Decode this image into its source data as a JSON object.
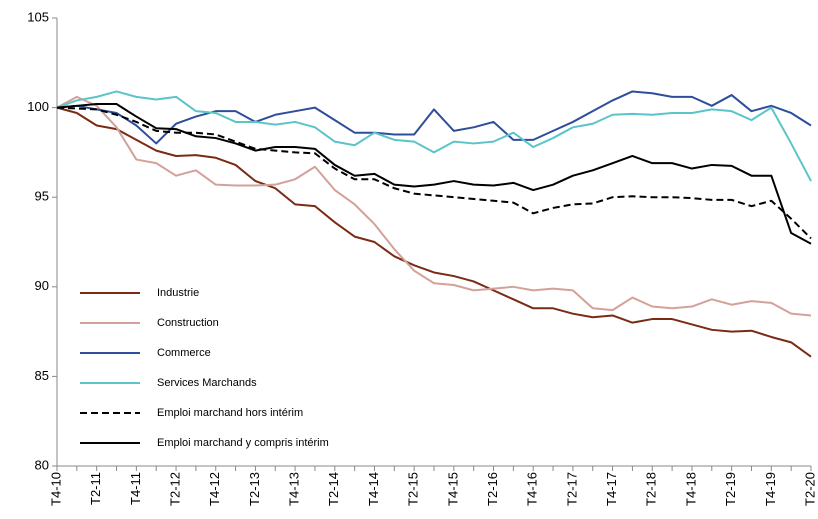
{
  "chart_data": {
    "type": "line",
    "categories": [
      "T4-10",
      null,
      "T2-11",
      null,
      "T4-11",
      null,
      "T2-12",
      null,
      "T4-12",
      null,
      "T2-13",
      null,
      "T4-13",
      null,
      "T2-14",
      null,
      "T4-14",
      null,
      "T2-15",
      null,
      "T4-15",
      null,
      "T2-16",
      null,
      "T4-16",
      null,
      "T2-17",
      null,
      "T4-17",
      null,
      "T2-18",
      null,
      "T4-18",
      null,
      "T2-19",
      null,
      "T4-19",
      null,
      "T2-20"
    ],
    "series": [
      {
        "name": "Industrie",
        "color": "#7b2a14",
        "dashed": false,
        "values": [
          100,
          99.7,
          99.0,
          98.8,
          98.2,
          97.6,
          97.3,
          97.35,
          97.2,
          96.8,
          95.9,
          95.5,
          94.6,
          94.5,
          93.6,
          92.8,
          92.5,
          91.7,
          91.2,
          90.8,
          90.6,
          90.3,
          89.8,
          89.3,
          88.8,
          88.8,
          88.5,
          88.3,
          88.4,
          88.0,
          88.2,
          88.2,
          87.9,
          87.6,
          87.5,
          87.55,
          87.2,
          86.9,
          86.1
        ]
      },
      {
        "name": "Construction",
        "color": "#d4a09a",
        "dashed": false,
        "values": [
          100,
          100.6,
          100.1,
          98.9,
          97.1,
          96.9,
          96.2,
          96.5,
          95.7,
          95.65,
          95.65,
          95.7,
          96.0,
          96.7,
          95.4,
          94.6,
          93.5,
          92.1,
          90.9,
          90.2,
          90.1,
          89.8,
          89.9,
          90.0,
          89.8,
          89.9,
          89.8,
          88.8,
          88.7,
          89.4,
          88.9,
          88.8,
          88.9,
          89.3,
          89.0,
          89.2,
          89.1,
          88.5,
          88.4
        ]
      },
      {
        "name": "Commerce",
        "color": "#2e4e9a",
        "dashed": false,
        "values": [
          100,
          100.1,
          99.9,
          99.7,
          99.0,
          98.0,
          99.1,
          99.5,
          99.8,
          99.8,
          99.2,
          99.6,
          99.8,
          100.0,
          99.3,
          98.6,
          98.6,
          98.5,
          98.5,
          99.9,
          98.7,
          98.9,
          99.2,
          98.2,
          98.2,
          98.7,
          99.2,
          99.8,
          100.4,
          100.9,
          100.8,
          100.6,
          100.6,
          100.1,
          100.7,
          99.8,
          100.1,
          99.7,
          99.0
        ]
      },
      {
        "name": "Services Marchands",
        "color": "#5bc4c9",
        "dashed": false,
        "values": [
          100,
          100.4,
          100.6,
          100.9,
          100.6,
          100.45,
          100.6,
          99.8,
          99.7,
          99.2,
          99.2,
          99.05,
          99.2,
          98.9,
          98.1,
          97.9,
          98.6,
          98.2,
          98.1,
          97.5,
          98.1,
          98.0,
          98.1,
          98.6,
          97.8,
          98.3,
          98.9,
          99.1,
          99.6,
          99.65,
          99.6,
          99.7,
          99.7,
          99.9,
          99.8,
          99.3,
          100.0,
          98.0,
          95.9
        ]
      },
      {
        "name": "Emploi marchand hors intérim",
        "color": "#000000",
        "dashed": true,
        "values": [
          100,
          99.95,
          99.9,
          99.6,
          99.2,
          98.7,
          98.6,
          98.6,
          98.5,
          98.1,
          97.7,
          97.6,
          97.5,
          97.45,
          96.6,
          96.0,
          96.0,
          95.5,
          95.2,
          95.1,
          95.0,
          94.9,
          94.8,
          94.7,
          94.1,
          94.4,
          94.6,
          94.65,
          95.0,
          95.05,
          95.0,
          95.0,
          94.95,
          94.85,
          94.85,
          94.5,
          94.8,
          93.8,
          92.7
        ]
      },
      {
        "name": "Emploi marchand y compris intérim",
        "color": "#000000",
        "dashed": false,
        "values": [
          100,
          100.1,
          100.2,
          100.2,
          99.5,
          98.85,
          98.8,
          98.4,
          98.3,
          98.0,
          97.6,
          97.8,
          97.8,
          97.7,
          96.8,
          96.2,
          96.3,
          95.7,
          95.6,
          95.7,
          95.9,
          95.7,
          95.65,
          95.8,
          95.4,
          95.7,
          96.2,
          96.5,
          96.9,
          97.3,
          96.9,
          96.9,
          96.6,
          96.8,
          96.75,
          96.2,
          96.2,
          93.0,
          92.4
        ]
      }
    ],
    "ylim": [
      80,
      105
    ],
    "yticks": [
      80,
      85,
      90,
      95,
      100,
      105
    ],
    "grid": false,
    "legend": "lower left"
  }
}
